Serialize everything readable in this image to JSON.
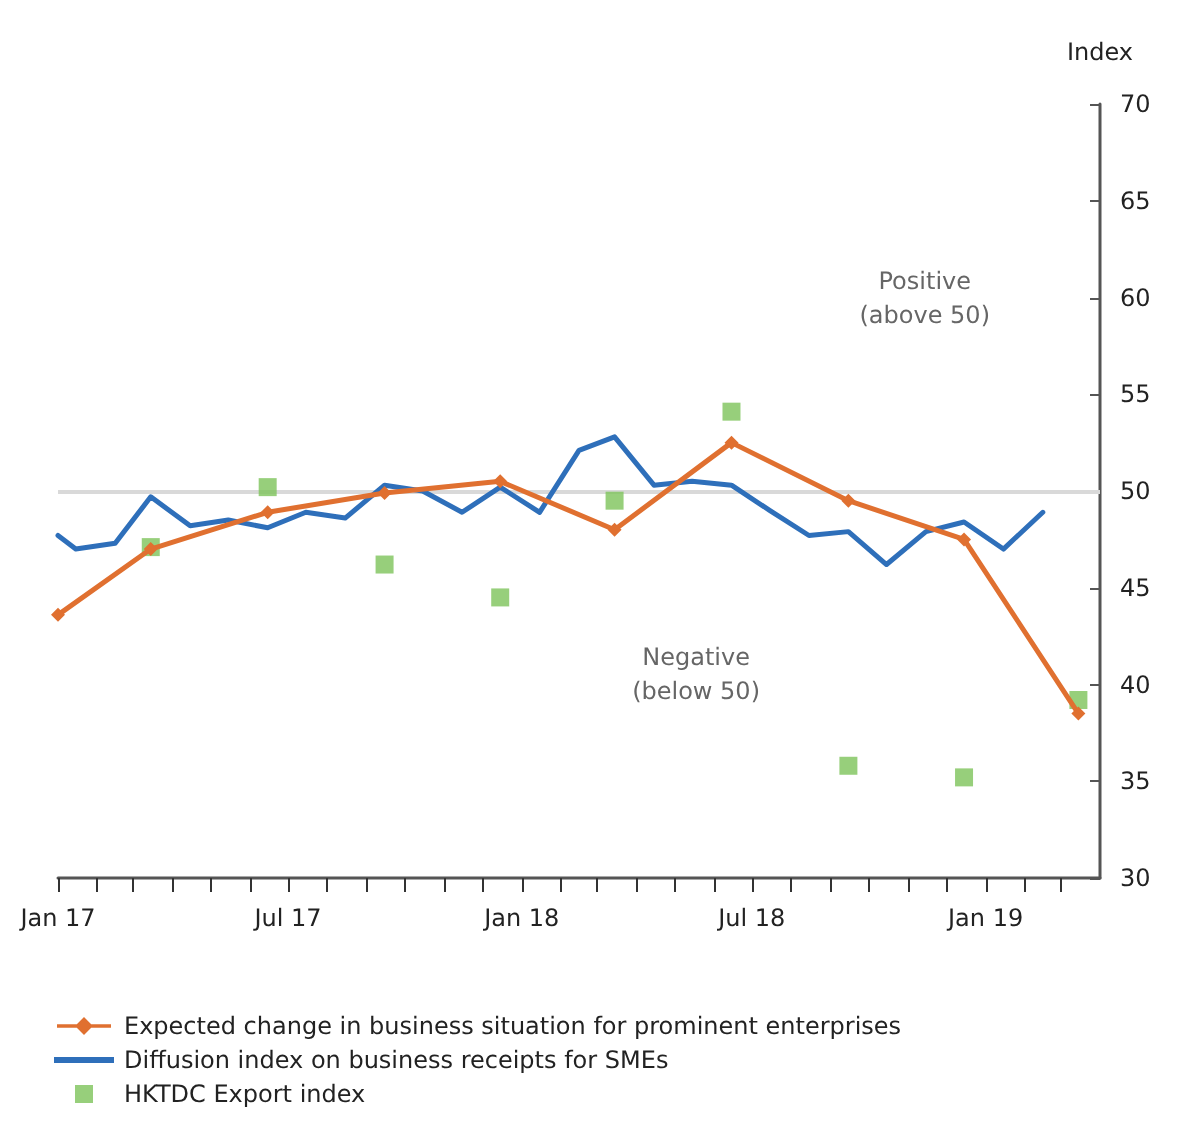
{
  "chart_data": {
    "type": "line",
    "ylabel": "Index",
    "xlim": [
      "2017-01-01",
      "2019-04-01"
    ],
    "xticks": [
      {
        "value": "2017-01-01",
        "label": "Jan 17"
      },
      {
        "value": "2017-02-01",
        "label": null
      },
      {
        "value": "2017-03-01",
        "label": null
      },
      {
        "value": "2017-04-01",
        "label": null
      },
      {
        "value": "2017-05-01",
        "label": null
      },
      {
        "value": "2017-06-01",
        "label": null
      },
      {
        "value": "2017-07-01",
        "label": "Jul 17"
      },
      {
        "value": "2017-08-01",
        "label": null
      },
      {
        "value": "2017-09-01",
        "label": null
      },
      {
        "value": "2017-10-01",
        "label": null
      },
      {
        "value": "2017-11-01",
        "label": null
      },
      {
        "value": "2017-12-01",
        "label": null
      },
      {
        "value": "2018-01-01",
        "label": "Jan 18"
      },
      {
        "value": "2018-02-01",
        "label": null
      },
      {
        "value": "2018-03-01",
        "label": null
      },
      {
        "value": "2018-04-01",
        "label": null
      },
      {
        "value": "2018-05-01",
        "label": null
      },
      {
        "value": "2018-06-01",
        "label": null
      },
      {
        "value": "2018-07-01",
        "label": "Jul 18"
      },
      {
        "value": "2018-08-01",
        "label": null
      },
      {
        "value": "2018-09-01",
        "label": null
      },
      {
        "value": "2018-10-01",
        "label": null
      },
      {
        "value": "2018-11-01",
        "label": null
      },
      {
        "value": "2018-12-01",
        "label": null
      },
      {
        "value": "2019-01-01",
        "label": "Jan 19"
      },
      {
        "value": "2019-02-01",
        "label": null
      },
      {
        "value": "2019-03-01",
        "label": null
      }
    ],
    "ylim": [
      30,
      70
    ],
    "yticks": [
      30,
      35,
      40,
      45,
      50,
      55,
      60,
      65,
      70
    ],
    "grid": false,
    "legend": "bottom",
    "ref_lines": [
      {
        "axis": "y",
        "value": 50,
        "label": null,
        "color": "#d9d9d9"
      }
    ],
    "annotations": [
      "Positive\n(above 50)",
      "Negative\n(below 50)"
    ],
    "series": [
      {
        "name": "Expected change in business situation for prominent enterprises",
        "color": "#e07030",
        "marker": "diamond",
        "x": [
          "2017-01-01",
          "2017-03-15",
          "2017-06-15",
          "2017-09-15",
          "2017-12-15",
          "2018-03-15",
          "2018-06-15",
          "2018-09-15",
          "2018-12-15",
          "2019-03-15"
        ],
        "values": [
          43.6,
          47.0,
          48.9,
          49.9,
          50.5,
          48.0,
          52.5,
          49.5,
          47.5,
          38.5
        ]
      },
      {
        "name": "Diffusion index on business receipts for SMEs",
        "color": "#2e6fba",
        "marker": "none",
        "x": [
          "2017-01-01",
          "2017-01-15",
          "2017-02-15",
          "2017-03-15",
          "2017-04-15",
          "2017-05-15",
          "2017-06-15",
          "2017-07-15",
          "2017-08-15",
          "2017-09-15",
          "2017-10-15",
          "2017-11-15",
          "2017-12-15",
          "2018-01-15",
          "2018-02-15",
          "2018-03-15",
          "2018-04-15",
          "2018-05-15",
          "2018-06-15",
          "2018-07-15",
          "2018-08-15",
          "2018-09-15",
          "2018-10-15",
          "2018-11-15",
          "2018-12-15",
          "2019-01-15",
          "2019-02-15"
        ],
        "values": [
          47.7,
          47.0,
          47.3,
          49.7,
          48.2,
          48.5,
          48.1,
          48.9,
          48.6,
          50.3,
          50.0,
          48.9,
          50.2,
          48.9,
          52.1,
          52.8,
          50.3,
          50.5,
          50.3,
          49.0,
          47.7,
          47.9,
          46.2,
          47.9,
          48.4,
          47.0,
          48.9
        ]
      },
      {
        "name": "HKTDC Export index",
        "type": "scatter",
        "color": "#7dc35a",
        "marker": "square",
        "x": [
          "2017-03-15",
          "2017-06-15",
          "2017-09-15",
          "2017-12-15",
          "2018-03-15",
          "2018-06-15",
          "2018-09-15",
          "2018-12-15",
          "2019-03-15"
        ],
        "values": [
          47.1,
          50.2,
          46.2,
          44.5,
          49.5,
          54.1,
          35.8,
          35.2,
          39.2
        ]
      }
    ]
  }
}
